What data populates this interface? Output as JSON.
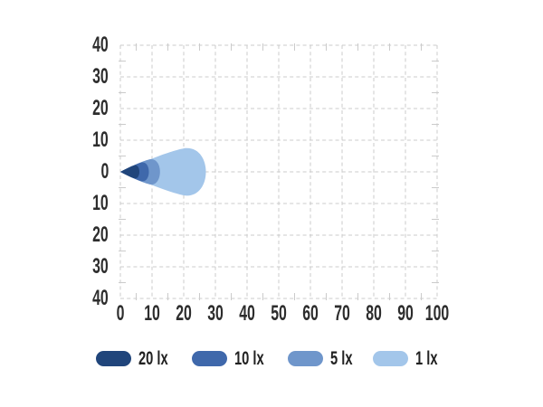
{
  "chart_data": {
    "type": "area",
    "title": "",
    "x_ticks": [
      "0",
      "10",
      "20",
      "30",
      "40",
      "50",
      "60",
      "70",
      "80",
      "90",
      "100"
    ],
    "y_ticks": [
      "40",
      "30",
      "20",
      "10",
      "0",
      "10",
      "20",
      "30",
      "40"
    ],
    "x_range": [
      0,
      100
    ],
    "y_range": [
      -40,
      40
    ],
    "major_tick_step": 10,
    "minor_tick_step": 5,
    "grid": "dashed",
    "legend_position": "bottom",
    "origin": [
      0,
      0
    ],
    "series": [
      {
        "label": "20 lx",
        "lux": 20,
        "color": "#20457b",
        "reach": 6,
        "half_width": 2.1
      },
      {
        "label": "10 lx",
        "lux": 10,
        "color": "#3f68ab",
        "reach": 9,
        "half_width": 3.0
      },
      {
        "label": "5 lx",
        "lux": 5,
        "color": "#6f96cb",
        "reach": 12.5,
        "half_width": 4.0
      },
      {
        "label": "1 lx",
        "lux": 1,
        "color": "#a3c6ea",
        "reach": 27,
        "half_width": 7.5
      }
    ],
    "colors": {
      "grid": "#cbcbcb",
      "text": "#2d2d2d",
      "background": "#ffffff"
    }
  }
}
